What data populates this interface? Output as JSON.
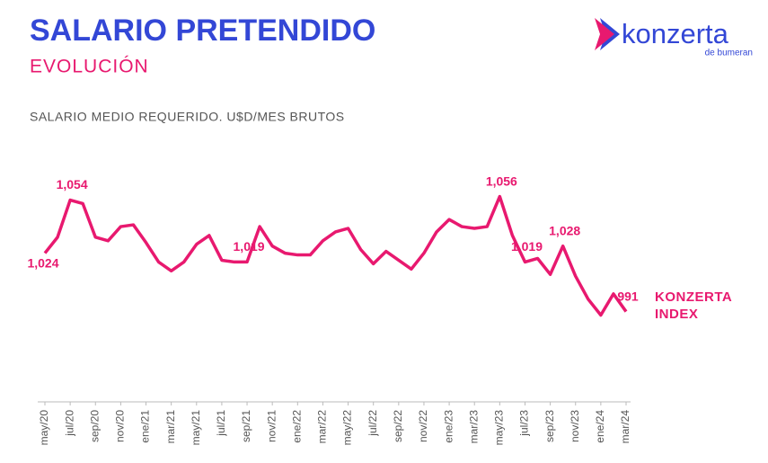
{
  "logo": {
    "name": "konzerta",
    "tagline": "de bumeran"
  },
  "chart_data": {
    "type": "line",
    "title": "SALARIO PRETENDIDO",
    "subtitle": "EVOLUCIÓN",
    "y_label": "SALARIO MEDIO REQUERIDO. U$D/MES BRUTOS",
    "categories": [
      "may/20",
      null,
      "jul/20",
      null,
      "sep/20",
      null,
      "nov/20",
      null,
      "ene/21",
      null,
      "mar/21",
      null,
      "may/21",
      null,
      "jul/21",
      null,
      "sep/21",
      null,
      "nov/21",
      null,
      "ene/22",
      null,
      "mar/22",
      null,
      "may/22",
      null,
      "jul/22",
      null,
      "sep/22",
      null,
      "nov/22",
      null,
      "ene/23",
      null,
      "mar/23",
      null,
      "may/23",
      null,
      "jul/23",
      null,
      "sep/23",
      null,
      "nov/23",
      null,
      "ene/24",
      null,
      "mar/24"
    ],
    "series": [
      {
        "name": "KONZERTA INDEX",
        "color": "#e8196f",
        "values": [
          1024,
          1033,
          1054,
          1052,
          1033,
          1031,
          1039,
          1040,
          1030,
          1019,
          1014,
          1019,
          1029,
          1034,
          1020,
          1019,
          1019,
          1039,
          1028,
          1024,
          1023,
          1023,
          1031,
          1036,
          1038,
          1026,
          1018,
          1025,
          1020,
          1015,
          1024,
          1036,
          1043,
          1039,
          1038,
          1039,
          1056,
          1034,
          1019,
          1021,
          1012,
          1028,
          1011,
          998,
          989,
          1001,
          991
        ],
        "value_labels": [
          "1,024",
          null,
          "1,054",
          null,
          null,
          null,
          null,
          null,
          null,
          null,
          null,
          null,
          null,
          null,
          null,
          null,
          "1,019",
          null,
          null,
          null,
          null,
          null,
          null,
          null,
          null,
          null,
          null,
          null,
          null,
          null,
          null,
          null,
          null,
          null,
          null,
          null,
          "1,056",
          null,
          "1,019",
          null,
          null,
          "1,028",
          null,
          null,
          null,
          null,
          "991"
        ]
      }
    ],
    "ylim": [
      940,
      1070
    ]
  }
}
